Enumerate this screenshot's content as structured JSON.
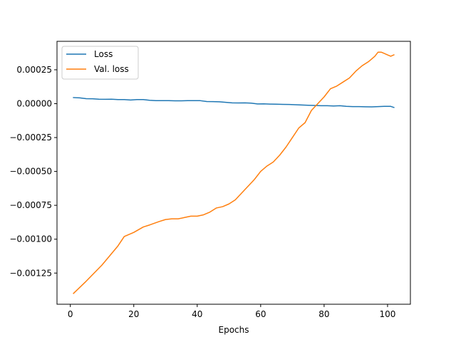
{
  "chart_data": {
    "type": "line",
    "title": "",
    "xlabel": "Epochs",
    "ylabel": "",
    "xlim": [
      -4.2,
      107.2
    ],
    "ylim": [
      -0.00148,
      0.00046
    ],
    "grid": false,
    "legend": {
      "position": "top-left"
    },
    "x_ticks": [
      {
        "value": 0,
        "label": "0"
      },
      {
        "value": 20,
        "label": "20"
      },
      {
        "value": 40,
        "label": "40"
      },
      {
        "value": 60,
        "label": "60"
      },
      {
        "value": 80,
        "label": "80"
      },
      {
        "value": 100,
        "label": "100"
      }
    ],
    "y_ticks": [
      {
        "value": 0.00025,
        "label": "0.00025"
      },
      {
        "value": 0.0,
        "label": "0.00000"
      },
      {
        "value": -0.00025,
        "label": "−0.00025"
      },
      {
        "value": -0.0005,
        "label": "−0.00050"
      },
      {
        "value": -0.00075,
        "label": "−0.00075"
      },
      {
        "value": -0.001,
        "label": "−0.00100"
      },
      {
        "value": -0.00125,
        "label": "−0.00125"
      }
    ],
    "series": [
      {
        "name": "Loss",
        "color": "#1f77b4",
        "x": [
          1,
          3,
          5,
          7,
          9,
          11,
          13,
          15,
          17,
          19,
          21,
          23,
          25,
          27,
          29,
          31,
          33,
          35,
          37,
          39,
          41,
          43,
          45,
          47,
          49,
          51,
          53,
          55,
          57,
          59,
          61,
          63,
          65,
          67,
          69,
          71,
          73,
          75,
          77,
          79,
          81,
          83,
          85,
          87,
          89,
          91,
          93,
          95,
          97,
          99,
          101,
          102
        ],
        "y": [
          4.5e-05,
          4.3e-05,
          3.7e-05,
          3.6e-05,
          3.3e-05,
          3.2e-05,
          3.3e-05,
          3e-05,
          3e-05,
          2.7e-05,
          3e-05,
          3e-05,
          2.5e-05,
          2.2e-05,
          2.2e-05,
          2.2e-05,
          2.1e-05,
          2.1e-05,
          2.2e-05,
          2.2e-05,
          2.2e-05,
          1.6e-05,
          1.5e-05,
          1.4e-05,
          1e-05,
          6e-06,
          5e-06,
          6e-06,
          4e-06,
          -2e-06,
          -1e-06,
          -3e-06,
          -4e-06,
          -5e-06,
          -6e-06,
          -8e-06,
          -1e-05,
          -1.2e-05,
          -1.3e-05,
          -1.5e-05,
          -1.5e-05,
          -1.7e-05,
          -1.5e-05,
          -2e-05,
          -2.2e-05,
          -2.2e-05,
          -2.3e-05,
          -2.4e-05,
          -2.2e-05,
          -2e-05,
          -2e-05,
          -2.8e-05
        ]
      },
      {
        "name": "Val. loss",
        "color": "#ff7f0e",
        "x": [
          1,
          5,
          10,
          15,
          17,
          20,
          23,
          25,
          28,
          30,
          32,
          34,
          36,
          38,
          40,
          42,
          44,
          46,
          48,
          50,
          52,
          54,
          56,
          58,
          60,
          62,
          64,
          66,
          68,
          70,
          72,
          74,
          76,
          78,
          80,
          82,
          84,
          86,
          88,
          90,
          92,
          94,
          96,
          97,
          98,
          99,
          100,
          101,
          102
        ],
        "y": [
          -0.0014,
          -0.00131,
          -0.00119,
          -0.00105,
          -0.00098,
          -0.00095,
          -0.00091,
          -0.000895,
          -0.00087,
          -0.000855,
          -0.00085,
          -0.00085,
          -0.00084,
          -0.00083,
          -0.00083,
          -0.00082,
          -0.0008,
          -0.00077,
          -0.00076,
          -0.00074,
          -0.00071,
          -0.00066,
          -0.00061,
          -0.00056,
          -0.0005,
          -0.00046,
          -0.00043,
          -0.00038,
          -0.00032,
          -0.00025,
          -0.00018,
          -0.00014,
          -5e-05,
          0.0,
          5e-05,
          0.00011,
          0.00013,
          0.00016,
          0.00019,
          0.00024,
          0.00028,
          0.00031,
          0.00035,
          0.00038,
          0.00038,
          0.00037,
          0.00036,
          0.00035,
          0.00036
        ]
      }
    ]
  }
}
